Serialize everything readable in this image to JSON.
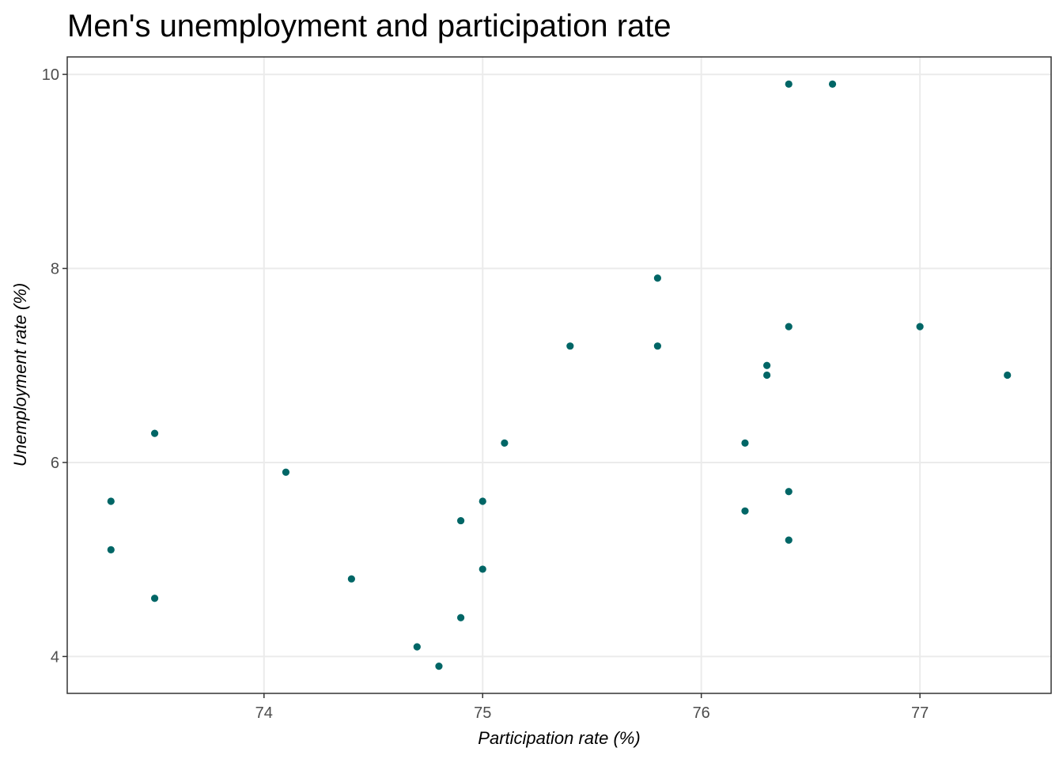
{
  "chart_data": {
    "type": "scatter",
    "title": "Men's unemployment and participation rate",
    "xlabel": "Participation rate (%)",
    "ylabel": "Unemployment rate (%)",
    "xlim": [
      73.1,
      77.6
    ],
    "ylim": [
      3.62,
      10.18
    ],
    "x_ticks": [
      74,
      75,
      76,
      77
    ],
    "y_ticks": [
      4,
      6,
      8,
      10
    ],
    "x_tick_labels": [
      "74",
      "75",
      "76",
      "77"
    ],
    "y_tick_labels": [
      "4",
      "6",
      "8",
      "10"
    ],
    "grid": true,
    "point_color": "#006666",
    "points": [
      {
        "x": 73.3,
        "y": 5.6
      },
      {
        "x": 73.3,
        "y": 5.1
      },
      {
        "x": 73.5,
        "y": 6.3
      },
      {
        "x": 73.5,
        "y": 4.6
      },
      {
        "x": 74.1,
        "y": 5.9
      },
      {
        "x": 74.4,
        "y": 4.8
      },
      {
        "x": 74.7,
        "y": 4.1
      },
      {
        "x": 74.8,
        "y": 3.9
      },
      {
        "x": 74.9,
        "y": 5.4
      },
      {
        "x": 74.9,
        "y": 4.4
      },
      {
        "x": 75.0,
        "y": 5.6
      },
      {
        "x": 75.0,
        "y": 4.9
      },
      {
        "x": 75.1,
        "y": 6.2
      },
      {
        "x": 75.4,
        "y": 7.2
      },
      {
        "x": 75.8,
        "y": 7.9
      },
      {
        "x": 75.8,
        "y": 7.2
      },
      {
        "x": 76.2,
        "y": 6.2
      },
      {
        "x": 76.2,
        "y": 5.5
      },
      {
        "x": 76.3,
        "y": 7.0
      },
      {
        "x": 76.3,
        "y": 6.9
      },
      {
        "x": 76.4,
        "y": 9.9
      },
      {
        "x": 76.4,
        "y": 7.4
      },
      {
        "x": 76.4,
        "y": 5.7
      },
      {
        "x": 76.4,
        "y": 5.2
      },
      {
        "x": 76.6,
        "y": 9.9
      },
      {
        "x": 77.0,
        "y": 7.4
      },
      {
        "x": 77.4,
        "y": 6.9
      }
    ]
  }
}
